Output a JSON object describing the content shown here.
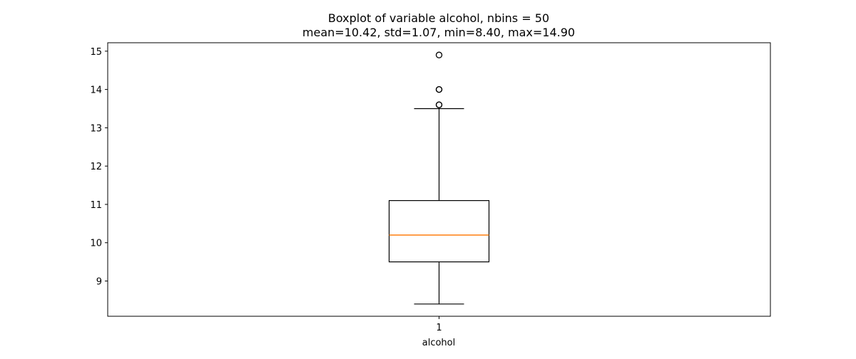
{
  "chart_data": {
    "type": "boxplot",
    "title": "Boxplot of variable alcohol, nbins = 50",
    "subtitle": "mean=10.42, std=1.07, min=8.40, max=14.90",
    "xlabel": "alcohol",
    "ylabel": "",
    "categories": [
      "1"
    ],
    "ylim": [
      8.08,
      15.22
    ],
    "yticks": [
      9,
      10,
      11,
      12,
      13,
      14,
      15
    ],
    "grid": false,
    "series": [
      {
        "category": "1",
        "whisker_low": 8.4,
        "q1": 9.5,
        "median": 10.2,
        "q3": 11.1,
        "whisker_high": 13.5,
        "outliers": [
          13.6,
          13.6,
          14.0,
          14.0,
          14.9
        ]
      }
    ],
    "colors": {
      "box": "#000000",
      "median": "#ff7f0e",
      "outlier": "#000000"
    }
  }
}
